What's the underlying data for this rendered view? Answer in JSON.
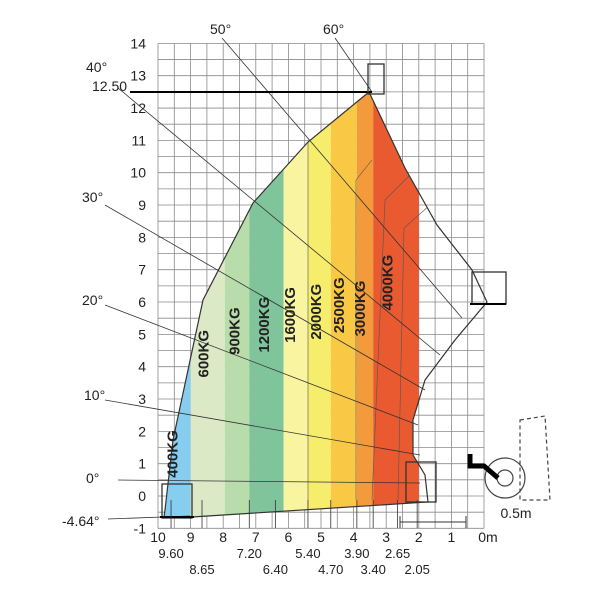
{
  "chart_data": {
    "type": "area",
    "y_axis": {
      "range": [
        -1,
        14
      ],
      "ticks": [
        "-1",
        "0",
        "1",
        "2",
        "3",
        "4",
        "5",
        "6",
        "7",
        "8",
        "9",
        "10",
        "11",
        "12",
        "13",
        "14"
      ],
      "special_labels": [
        "12.50",
        "-4.64°"
      ]
    },
    "x_axis": {
      "range": [
        0,
        10
      ],
      "ticks": [
        "10",
        "9",
        "8",
        "7",
        "6",
        "5",
        "4",
        "3",
        "2",
        "1",
        "0m"
      ],
      "sub_labels_row1": [
        "9.60",
        "7.20",
        "5.40",
        "3.90",
        "2.65"
      ],
      "sub_labels_row2": [
        "8.65",
        "6.40",
        "4.70",
        "3.40",
        "2.05"
      ],
      "scale_note": "0.5m"
    },
    "angles": [
      "0°",
      "10°",
      "20°",
      "30°",
      "40°",
      "50°",
      "60°",
      "-4.64°"
    ],
    "load_zones": [
      {
        "label": "400KG",
        "color": "#86cdf0",
        "x_from": 9.0,
        "x_to": 10.0
      },
      {
        "label": "600KG",
        "color": "#dbe9c6",
        "x_from": 7.95,
        "x_to": 9.0
      },
      {
        "label": "900KG",
        "color": "#b9dcab",
        "x_from": 7.2,
        "x_to": 7.95
      },
      {
        "label": "1200KG",
        "color": "#7fc49a",
        "x_from": 6.15,
        "x_to": 7.2
      },
      {
        "label": "1600KG",
        "color": "#f8f4a0",
        "x_from": 5.4,
        "x_to": 6.15
      },
      {
        "label": "2000KG",
        "color": "#f6ed6c",
        "x_from": 4.7,
        "x_to": 5.4
      },
      {
        "label": "2500KG",
        "color": "#f9c946",
        "x_from": 3.9,
        "x_to": 4.7
      },
      {
        "label": "3000KG",
        "color": "#f39a3a",
        "x_from": 3.4,
        "x_to": 3.9
      },
      {
        "label": "4000KG",
        "color": "#ea5a30",
        "x_from": 2.0,
        "x_to": 3.4
      }
    ],
    "max_height": 12.5,
    "grid": true
  }
}
